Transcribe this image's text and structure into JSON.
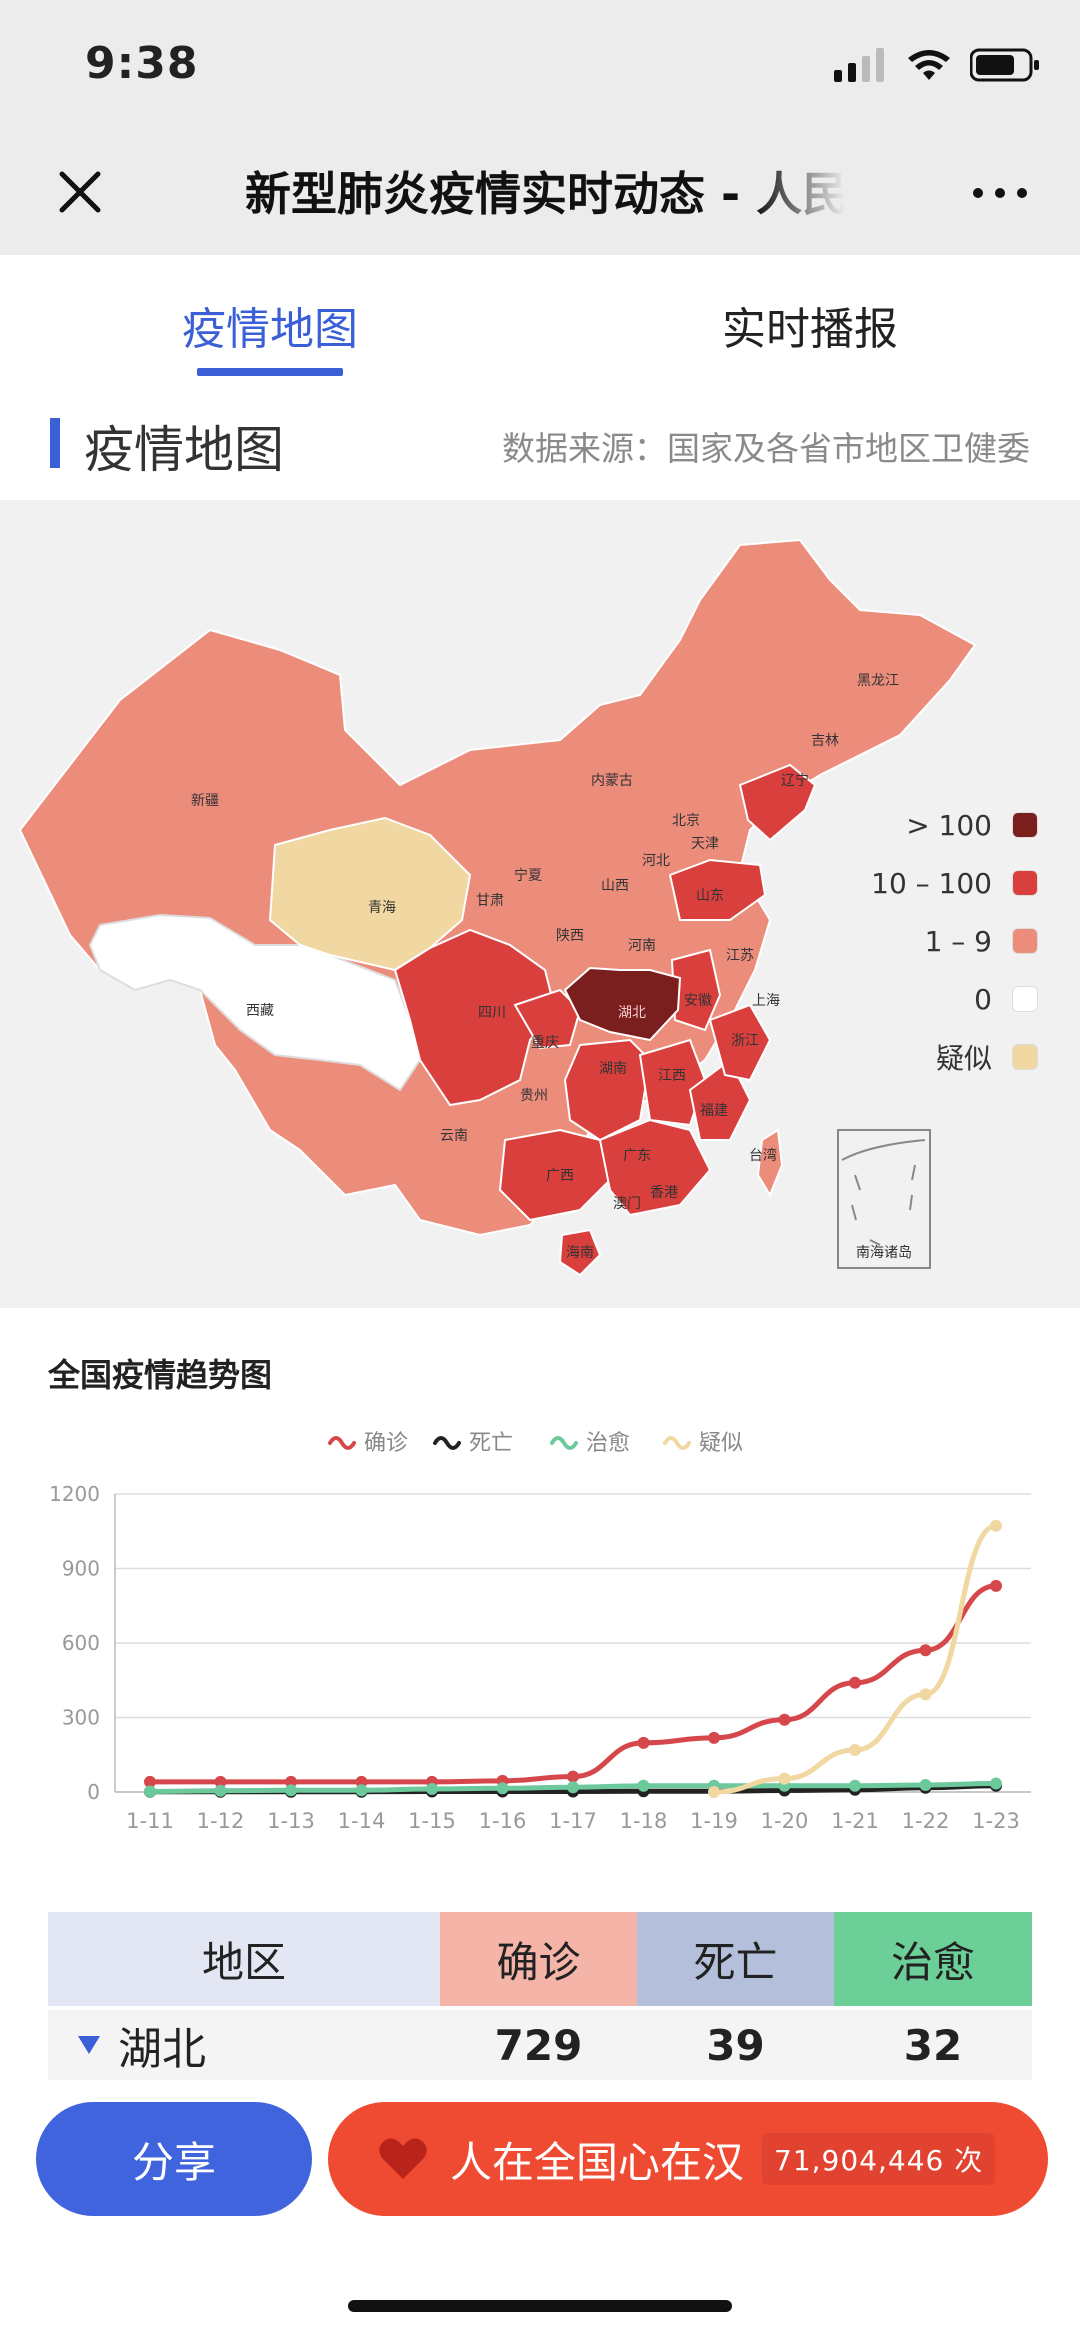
{
  "status": {
    "time": "9:38"
  },
  "nav": {
    "title": "新型肺炎疫情实时动态 - 人民日报"
  },
  "tabs": [
    {
      "label": "疫情地图",
      "active": true
    },
    {
      "label": "实时播报",
      "active": false
    }
  ],
  "section": {
    "title": "疫情地图",
    "source": "数据来源：国家及各省市地区卫健委"
  },
  "map": {
    "labels": [
      "黑龙江",
      "吉林",
      "辽宁",
      "内蒙古",
      "北京",
      "天津",
      "河北",
      "山西",
      "山东",
      "新疆",
      "青海",
      "甘肃",
      "宁夏",
      "陕西",
      "河南",
      "江苏",
      "上海",
      "安徽",
      "浙江",
      "西藏",
      "四川",
      "重庆",
      "湖北",
      "湖南",
      "江西",
      "福建",
      "贵州",
      "云南",
      "广西",
      "广东",
      "香港",
      "澳门",
      "台湾",
      "海南",
      "南海诸岛"
    ],
    "legend": [
      {
        "label": "> 100",
        "color": "#7a1e1e"
      },
      {
        "label": "10 – 100",
        "color": "#d9403d"
      },
      {
        "label": "1 – 9",
        "color": "#ec8d7c"
      },
      {
        "label": "0",
        "color": "#ffffff"
      },
      {
        "label": "疑似",
        "color": "#f1d7a1"
      }
    ]
  },
  "chart_title": "全国疫情趋势图",
  "chart_data": {
    "type": "line",
    "categories": [
      "1-11",
      "1-12",
      "1-13",
      "1-14",
      "1-15",
      "1-16",
      "1-17",
      "1-18",
      "1-19",
      "1-20",
      "1-21",
      "1-22",
      "1-23"
    ],
    "series": [
      {
        "name": "确诊",
        "color": "#d5474b",
        "values": [
          41,
          41,
          41,
          41,
          41,
          45,
          62,
          198,
          218,
          291,
          440,
          571,
          830
        ]
      },
      {
        "name": "死亡",
        "color": "#222222",
        "values": [
          1,
          1,
          1,
          1,
          2,
          2,
          2,
          3,
          3,
          6,
          9,
          17,
          25
        ]
      },
      {
        "name": "治愈",
        "color": "#6cc99b",
        "values": [
          2,
          5,
          7,
          7,
          12,
          15,
          19,
          25,
          25,
          25,
          25,
          28,
          34
        ]
      },
      {
        "name": "疑似",
        "color": "#f1d7a1",
        "values": [
          null,
          null,
          null,
          null,
          null,
          null,
          null,
          null,
          0,
          54,
          169,
          393,
          1072
        ]
      }
    ],
    "ylim": [
      0,
      1200
    ],
    "yticks": [
      0,
      300,
      600,
      900,
      1200
    ],
    "grid": true,
    "legend": "top-center"
  },
  "table": {
    "headers": [
      {
        "label": "地区",
        "color": "#e3e7f3"
      },
      {
        "label": "确诊",
        "color": "#f4b4a8"
      },
      {
        "label": "死亡",
        "color": "#b4c0db"
      },
      {
        "label": "治愈",
        "color": "#6ccf98"
      }
    ],
    "rows": [
      {
        "region": "湖北",
        "confirmed": "729",
        "dead": "39",
        "cured": "32"
      }
    ]
  },
  "bottom": {
    "share_label": "分享",
    "support_label": "人在全国心在汉",
    "support_count": "71,904,446 次"
  }
}
